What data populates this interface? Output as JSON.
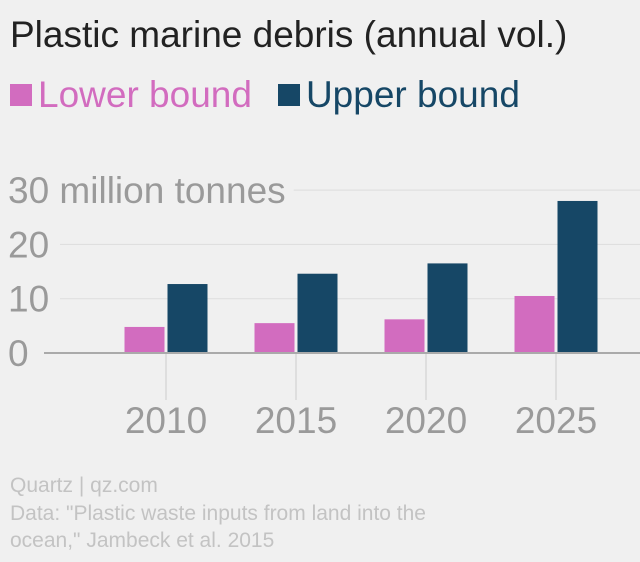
{
  "title": "Plastic marine debris (annual vol.)",
  "colors": {
    "lower": "#d26cbf",
    "upper": "#164766"
  },
  "chart_data": {
    "type": "bar",
    "title": "Plastic marine debris (annual vol.)",
    "categories": [
      "2010",
      "2015",
      "2020",
      "2025"
    ],
    "series": [
      {
        "name": "Lower bound",
        "values": [
          4.8,
          5.5,
          6.2,
          10.5
        ]
      },
      {
        "name": "Upper bound",
        "values": [
          12.7,
          14.6,
          16.5,
          28.0
        ]
      }
    ],
    "yticks": [
      0,
      10,
      20,
      30
    ],
    "ytick_labels": [
      "0",
      "10",
      "20",
      "30 million tonnes"
    ],
    "ylim": [
      0,
      30
    ],
    "xlabel": "",
    "ylabel": "",
    "grid": true,
    "legend": "top-left"
  },
  "footer": {
    "source_brand": "Quartz | qz.com",
    "data_line1": "Data: \"Plastic waste inputs from land into the",
    "data_line2": "ocean,\" Jambeck et al. 2015"
  }
}
